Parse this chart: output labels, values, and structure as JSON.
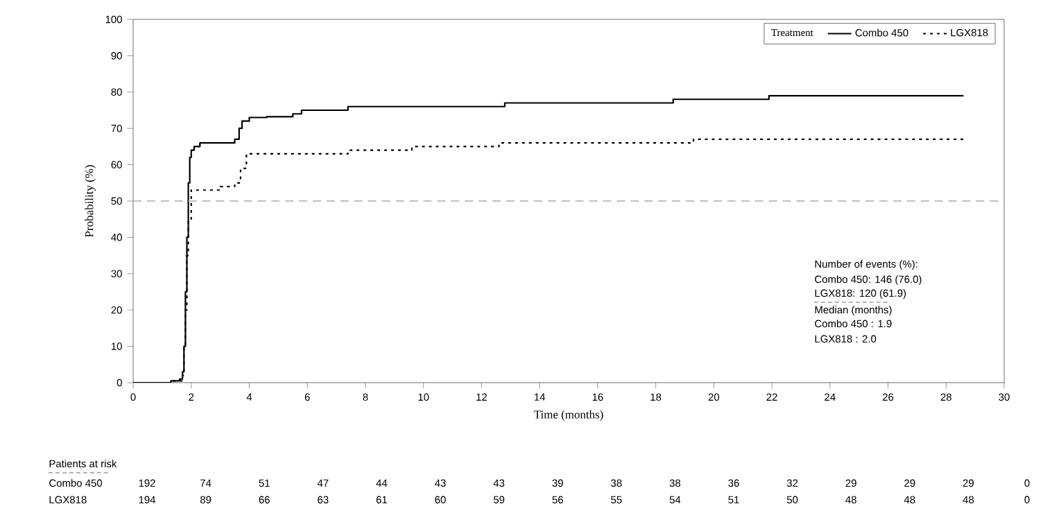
{
  "chart_data": {
    "type": "step",
    "xlabel": "Time (months)",
    "ylabel": "Probability (%)",
    "legend_title": "Treatment",
    "legend": "top right",
    "grid": false,
    "xlim": [
      0,
      30
    ],
    "xticks": [
      0,
      2,
      4,
      6,
      8,
      10,
      12,
      14,
      16,
      18,
      20,
      22,
      24,
      26,
      28,
      30
    ],
    "ylim": [
      0,
      100
    ],
    "yticks": [
      0,
      10,
      20,
      30,
      40,
      50,
      60,
      70,
      80,
      90,
      100
    ],
    "series": [
      {
        "name": "Combo 450",
        "color": "#000000",
        "line_style": "solid",
        "x": [
          0,
          1.3,
          1.6,
          1.7,
          1.75,
          1.8,
          1.85,
          1.9,
          1.95,
          2.0,
          2.1,
          2.3,
          3.5,
          3.65,
          3.75,
          4.0,
          4.6,
          5.5,
          5.8,
          7.4,
          12.8,
          18.6,
          21.9,
          28.6
        ],
        "values": [
          0,
          0.5,
          1,
          3,
          10,
          25,
          40,
          55,
          62,
          64,
          65,
          66,
          67,
          70,
          72,
          73,
          73.2,
          74,
          75,
          76,
          77,
          78,
          79,
          79
        ]
      },
      {
        "name": "LGX818",
        "color": "#000000",
        "line_style": "dashed",
        "x": [
          0,
          1.4,
          1.7,
          1.75,
          1.8,
          1.85,
          1.9,
          2.0,
          3.0,
          3.5,
          3.7,
          3.9,
          7.4,
          9.6,
          12.6,
          19.3,
          28.6
        ],
        "values": [
          0,
          0.5,
          2,
          10,
          20,
          35,
          45,
          53,
          54,
          55,
          59,
          63,
          64,
          65,
          66,
          67,
          67
        ]
      }
    ],
    "ref_lines": [
      {
        "axis": "y",
        "value": 50,
        "color": "#aaaaaa",
        "line_style": "dashed"
      }
    ],
    "annotations": [
      "Patients at risk",
      "Combo 450",
      "192",
      "74",
      "51",
      "47",
      "44",
      "43",
      "43",
      "39",
      "38",
      "38",
      "36",
      "32",
      "29",
      "29",
      "29",
      "0",
      "LGX818",
      "194",
      "89",
      "66",
      "63",
      "61",
      "60",
      "59",
      "56",
      "55",
      "54",
      "51",
      "50",
      "48",
      "48",
      "48",
      "0",
      "Number of events (%):",
      "Combo 450: 146 (76.0)",
      "LGX818: 120  (61.9)",
      "Median (months)",
      "Combo 450 : 1.9",
      "LGX818 : 2.0"
    ]
  }
}
